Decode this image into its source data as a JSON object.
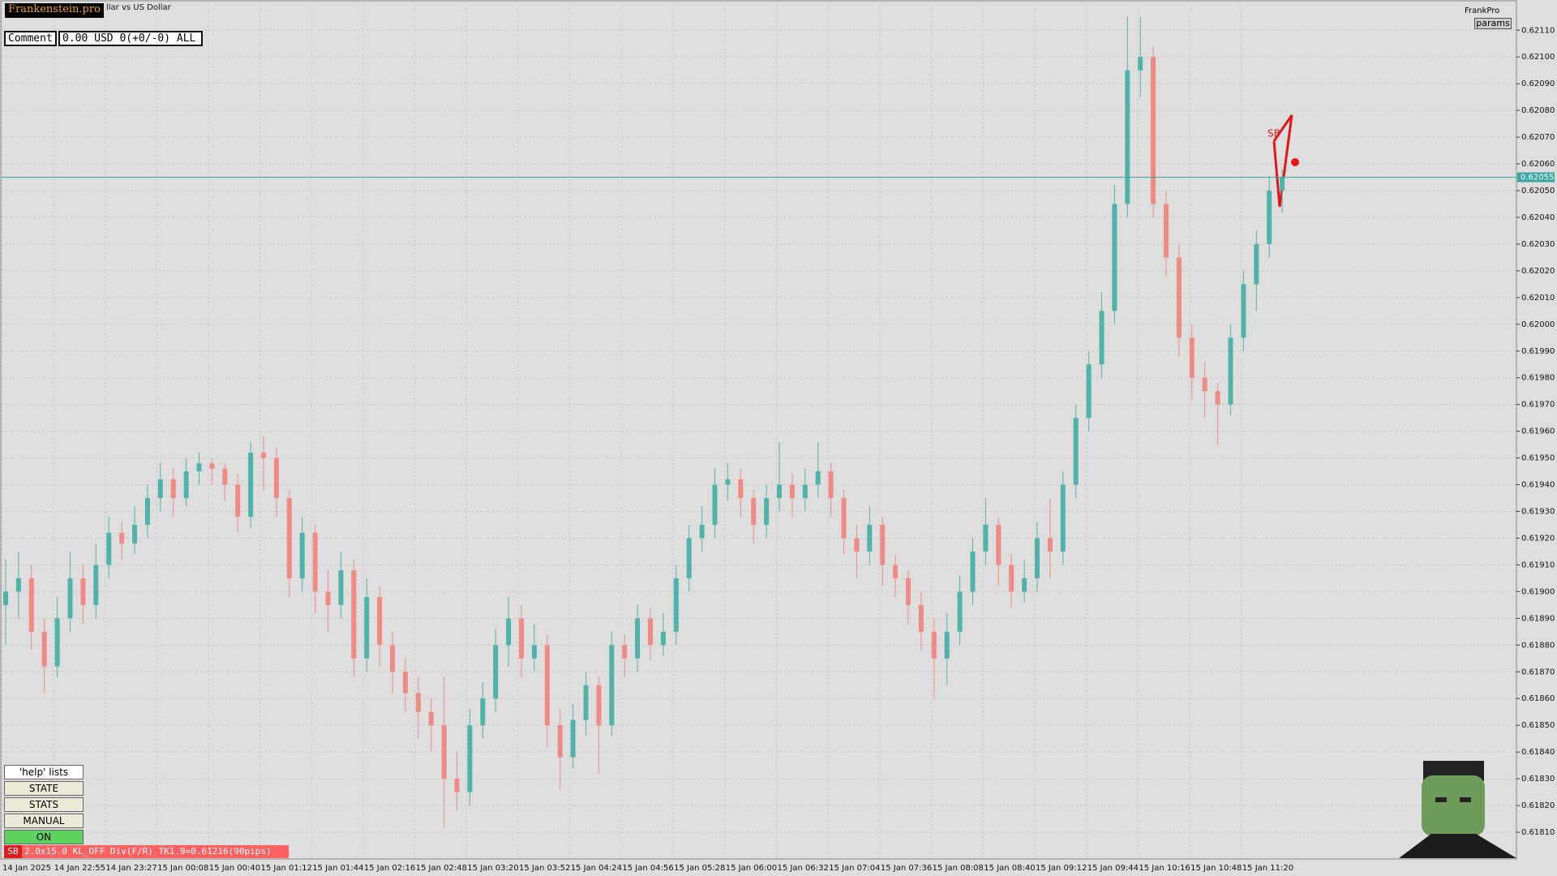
{
  "chart_data": {
    "type": "candlestick",
    "symbol_title": "llar vs US Dollar",
    "up_color": "#4fb3a9",
    "down_color": "#f08a84",
    "ylim": [
      0.618,
      0.62121
    ],
    "yticks": [
      {
        "value": 0.6181,
        "label": "0.61810"
      },
      {
        "value": 0.6182,
        "label": "0.61820"
      },
      {
        "value": 0.6183,
        "label": "0.61830"
      },
      {
        "value": 0.6184,
        "label": "0.61840"
      },
      {
        "value": 0.6185,
        "label": "0.61850"
      },
      {
        "value": 0.6186,
        "label": "0.61860"
      },
      {
        "value": 0.6187,
        "label": "0.61870"
      },
      {
        "value": 0.6188,
        "label": "0.61880"
      },
      {
        "value": 0.6189,
        "label": "0.61890"
      },
      {
        "value": 0.619,
        "label": "0.61900"
      },
      {
        "value": 0.6191,
        "label": "0.61910"
      },
      {
        "value": 0.6192,
        "label": "0.61920"
      },
      {
        "value": 0.6193,
        "label": "0.61930"
      },
      {
        "value": 0.6194,
        "label": "0.61940"
      },
      {
        "value": 0.6195,
        "label": "0.61950"
      },
      {
        "value": 0.6196,
        "label": "0.61960"
      },
      {
        "value": 0.6197,
        "label": "0.61970"
      },
      {
        "value": 0.6198,
        "label": "0.61980"
      },
      {
        "value": 0.6199,
        "label": "0.61990"
      },
      {
        "value": 0.62,
        "label": "0.62000"
      },
      {
        "value": 0.6201,
        "label": "0.62010"
      },
      {
        "value": 0.6202,
        "label": "0.62020"
      },
      {
        "value": 0.6203,
        "label": "0.62030"
      },
      {
        "value": 0.6204,
        "label": "0.62040"
      },
      {
        "value": 0.6205,
        "label": "0.62050"
      },
      {
        "value": 0.6206,
        "label": "0.62060"
      },
      {
        "value": 0.6207,
        "label": "0.62070"
      },
      {
        "value": 0.6208,
        "label": "0.62080"
      },
      {
        "value": 0.6209,
        "label": "0.62090"
      },
      {
        "value": 0.621,
        "label": "0.62100"
      },
      {
        "value": 0.6211,
        "label": "0.62110"
      }
    ],
    "grid": true,
    "current_price": {
      "value": 0.62055,
      "label": "0.62055"
    },
    "current_price_color": "#3aa6a0",
    "time_labels": [
      "14 Jan 2025",
      "14 Jan 22:55",
      "14 Jan 23:27",
      "15 Jan 00:08",
      "15 Jan 00:40",
      "15 Jan 01:12",
      "15 Jan 01:44",
      "15 Jan 02:16",
      "15 Jan 02:48",
      "15 Jan 03:20",
      "15 Jan 03:52",
      "15 Jan 04:24",
      "15 Jan 04:56",
      "15 Jan 05:28",
      "15 Jan 06:00",
      "15 Jan 06:32",
      "15 Jan 07:04",
      "15 Jan 07:36",
      "15 Jan 08:08",
      "15 Jan 08:40",
      "15 Jan 09:12",
      "15 Jan 09:44",
      "15 Jan 10:16",
      "15 Jan 10:48",
      "15 Jan 11:20"
    ],
    "candles": [
      [
        0.61895,
        0.61912,
        0.6188,
        0.619
      ],
      [
        0.619,
        0.61915,
        0.6189,
        0.61905
      ],
      [
        0.61905,
        0.6191,
        0.61878,
        0.61885
      ],
      [
        0.61885,
        0.6189,
        0.61862,
        0.61872
      ],
      [
        0.61872,
        0.61898,
        0.61868,
        0.6189
      ],
      [
        0.6189,
        0.61915,
        0.61885,
        0.61905
      ],
      [
        0.61905,
        0.6191,
        0.61888,
        0.61895
      ],
      [
        0.61895,
        0.61918,
        0.6189,
        0.6191
      ],
      [
        0.6191,
        0.61928,
        0.61905,
        0.61922
      ],
      [
        0.61922,
        0.61926,
        0.61912,
        0.61918
      ],
      [
        0.61918,
        0.61932,
        0.61914,
        0.61925
      ],
      [
        0.61925,
        0.6194,
        0.6192,
        0.61935
      ],
      [
        0.61935,
        0.61948,
        0.6193,
        0.61942
      ],
      [
        0.61942,
        0.61946,
        0.61928,
        0.61935
      ],
      [
        0.61935,
        0.6195,
        0.61932,
        0.61945
      ],
      [
        0.61945,
        0.61952,
        0.6194,
        0.61948
      ],
      [
        0.61948,
        0.6195,
        0.6194,
        0.61946
      ],
      [
        0.61946,
        0.61948,
        0.61934,
        0.6194
      ],
      [
        0.6194,
        0.61944,
        0.61922,
        0.61928
      ],
      [
        0.61928,
        0.61956,
        0.61924,
        0.61952
      ],
      [
        0.61952,
        0.61958,
        0.61938,
        0.6195
      ],
      [
        0.6195,
        0.61954,
        0.61928,
        0.61935
      ],
      [
        0.61935,
        0.61938,
        0.61898,
        0.61905
      ],
      [
        0.61905,
        0.61928,
        0.619,
        0.61922
      ],
      [
        0.61922,
        0.61925,
        0.61892,
        0.619
      ],
      [
        0.619,
        0.61908,
        0.61885,
        0.61895
      ],
      [
        0.61895,
        0.61915,
        0.6189,
        0.61908
      ],
      [
        0.61908,
        0.61912,
        0.61868,
        0.61875
      ],
      [
        0.61875,
        0.61905,
        0.6187,
        0.61898
      ],
      [
        0.61898,
        0.61902,
        0.61872,
        0.6188
      ],
      [
        0.6188,
        0.61885,
        0.61862,
        0.6187
      ],
      [
        0.6187,
        0.61875,
        0.61855,
        0.61862
      ],
      [
        0.61862,
        0.61868,
        0.61845,
        0.61855
      ],
      [
        0.61855,
        0.6186,
        0.6184,
        0.6185
      ],
      [
        0.6185,
        0.61868,
        0.61812,
        0.6183
      ],
      [
        0.6183,
        0.6184,
        0.61818,
        0.61825
      ],
      [
        0.61825,
        0.61856,
        0.6182,
        0.6185
      ],
      [
        0.6185,
        0.61866,
        0.61845,
        0.6186
      ],
      [
        0.6186,
        0.61886,
        0.61855,
        0.6188
      ],
      [
        0.6188,
        0.61898,
        0.61872,
        0.6189
      ],
      [
        0.6189,
        0.61895,
        0.61868,
        0.61875
      ],
      [
        0.61875,
        0.61888,
        0.6187,
        0.6188
      ],
      [
        0.6188,
        0.61884,
        0.61842,
        0.6185
      ],
      [
        0.6185,
        0.61856,
        0.61826,
        0.61838
      ],
      [
        0.61838,
        0.61858,
        0.61834,
        0.61852
      ],
      [
        0.61852,
        0.6187,
        0.61846,
        0.61865
      ],
      [
        0.61865,
        0.61868,
        0.61832,
        0.6185
      ],
      [
        0.6185,
        0.61885,
        0.61846,
        0.6188
      ],
      [
        0.6188,
        0.61884,
        0.61868,
        0.61875
      ],
      [
        0.61875,
        0.61895,
        0.6187,
        0.6189
      ],
      [
        0.6189,
        0.61894,
        0.61874,
        0.6188
      ],
      [
        0.6188,
        0.61892,
        0.61876,
        0.61885
      ],
      [
        0.61885,
        0.6191,
        0.6188,
        0.61905
      ],
      [
        0.61905,
        0.61925,
        0.619,
        0.6192
      ],
      [
        0.6192,
        0.61932,
        0.61915,
        0.61925
      ],
      [
        0.61925,
        0.61946,
        0.6192,
        0.6194
      ],
      [
        0.6194,
        0.61948,
        0.61934,
        0.61942
      ],
      [
        0.61942,
        0.61946,
        0.61928,
        0.61935
      ],
      [
        0.61935,
        0.61938,
        0.61918,
        0.61925
      ],
      [
        0.61925,
        0.6194,
        0.6192,
        0.61935
      ],
      [
        0.61935,
        0.61956,
        0.6193,
        0.6194
      ],
      [
        0.6194,
        0.61944,
        0.61928,
        0.61935
      ],
      [
        0.61935,
        0.61946,
        0.6193,
        0.6194
      ],
      [
        0.6194,
        0.61956,
        0.61935,
        0.61945
      ],
      [
        0.61945,
        0.61948,
        0.61928,
        0.61935
      ],
      [
        0.61935,
        0.61938,
        0.61914,
        0.6192
      ],
      [
        0.6192,
        0.61925,
        0.61905,
        0.61915
      ],
      [
        0.61915,
        0.61932,
        0.6191,
        0.61925
      ],
      [
        0.61925,
        0.61928,
        0.61902,
        0.6191
      ],
      [
        0.6191,
        0.61914,
        0.61898,
        0.61905
      ],
      [
        0.61905,
        0.61908,
        0.61888,
        0.61895
      ],
      [
        0.61895,
        0.619,
        0.61878,
        0.61885
      ],
      [
        0.61885,
        0.6189,
        0.6186,
        0.61875
      ],
      [
        0.61875,
        0.61892,
        0.61865,
        0.61885
      ],
      [
        0.61885,
        0.61906,
        0.6188,
        0.619
      ],
      [
        0.619,
        0.6192,
        0.61895,
        0.61915
      ],
      [
        0.61915,
        0.61935,
        0.6191,
        0.61925
      ],
      [
        0.61925,
        0.61928,
        0.61902,
        0.6191
      ],
      [
        0.6191,
        0.61914,
        0.61894,
        0.619
      ],
      [
        0.619,
        0.61912,
        0.61896,
        0.61905
      ],
      [
        0.61905,
        0.61926,
        0.619,
        0.6192
      ],
      [
        0.6192,
        0.61935,
        0.61905,
        0.61915
      ],
      [
        0.61915,
        0.61945,
        0.6191,
        0.6194
      ],
      [
        0.6194,
        0.6197,
        0.61935,
        0.61965
      ],
      [
        0.61965,
        0.6199,
        0.6196,
        0.61985
      ],
      [
        0.61985,
        0.62012,
        0.6198,
        0.62005
      ],
      [
        0.62005,
        0.62052,
        0.62,
        0.62045
      ],
      [
        0.62045,
        0.62115,
        0.6204,
        0.62095
      ],
      [
        0.62095,
        0.62115,
        0.62085,
        0.621
      ],
      [
        0.621,
        0.62104,
        0.6204,
        0.62045
      ],
      [
        0.62045,
        0.6205,
        0.62018,
        0.62025
      ],
      [
        0.62025,
        0.6203,
        0.61988,
        0.61995
      ],
      [
        0.61995,
        0.62,
        0.61972,
        0.6198
      ],
      [
        0.6198,
        0.61986,
        0.61965,
        0.61975
      ],
      [
        0.61975,
        0.61978,
        0.61955,
        0.6197
      ],
      [
        0.6197,
        0.62,
        0.61966,
        0.61995
      ],
      [
        0.61995,
        0.6202,
        0.6199,
        0.62015
      ],
      [
        0.62015,
        0.62035,
        0.62005,
        0.6203
      ],
      [
        0.6203,
        0.62055,
        0.62025,
        0.6205
      ],
      [
        0.6205,
        0.62058,
        0.62042,
        0.62055
      ]
    ]
  },
  "ui": {
    "brand": "Frankenstein.pro",
    "comment_label": "Comment",
    "comment_value": "0.00 USD 0(+0/-0) ALL",
    "expert": "FrankPro",
    "params": "params",
    "pattern_label": "SB",
    "buttons": [
      "'help' lists cmds",
      "STATE",
      "STATS",
      "MANUAL",
      "ON"
    ],
    "status_tag": "SB",
    "status_text": "2.0x15.0 KL_OFF Div(F/R) TK1.9=0.61216(90pips)"
  }
}
